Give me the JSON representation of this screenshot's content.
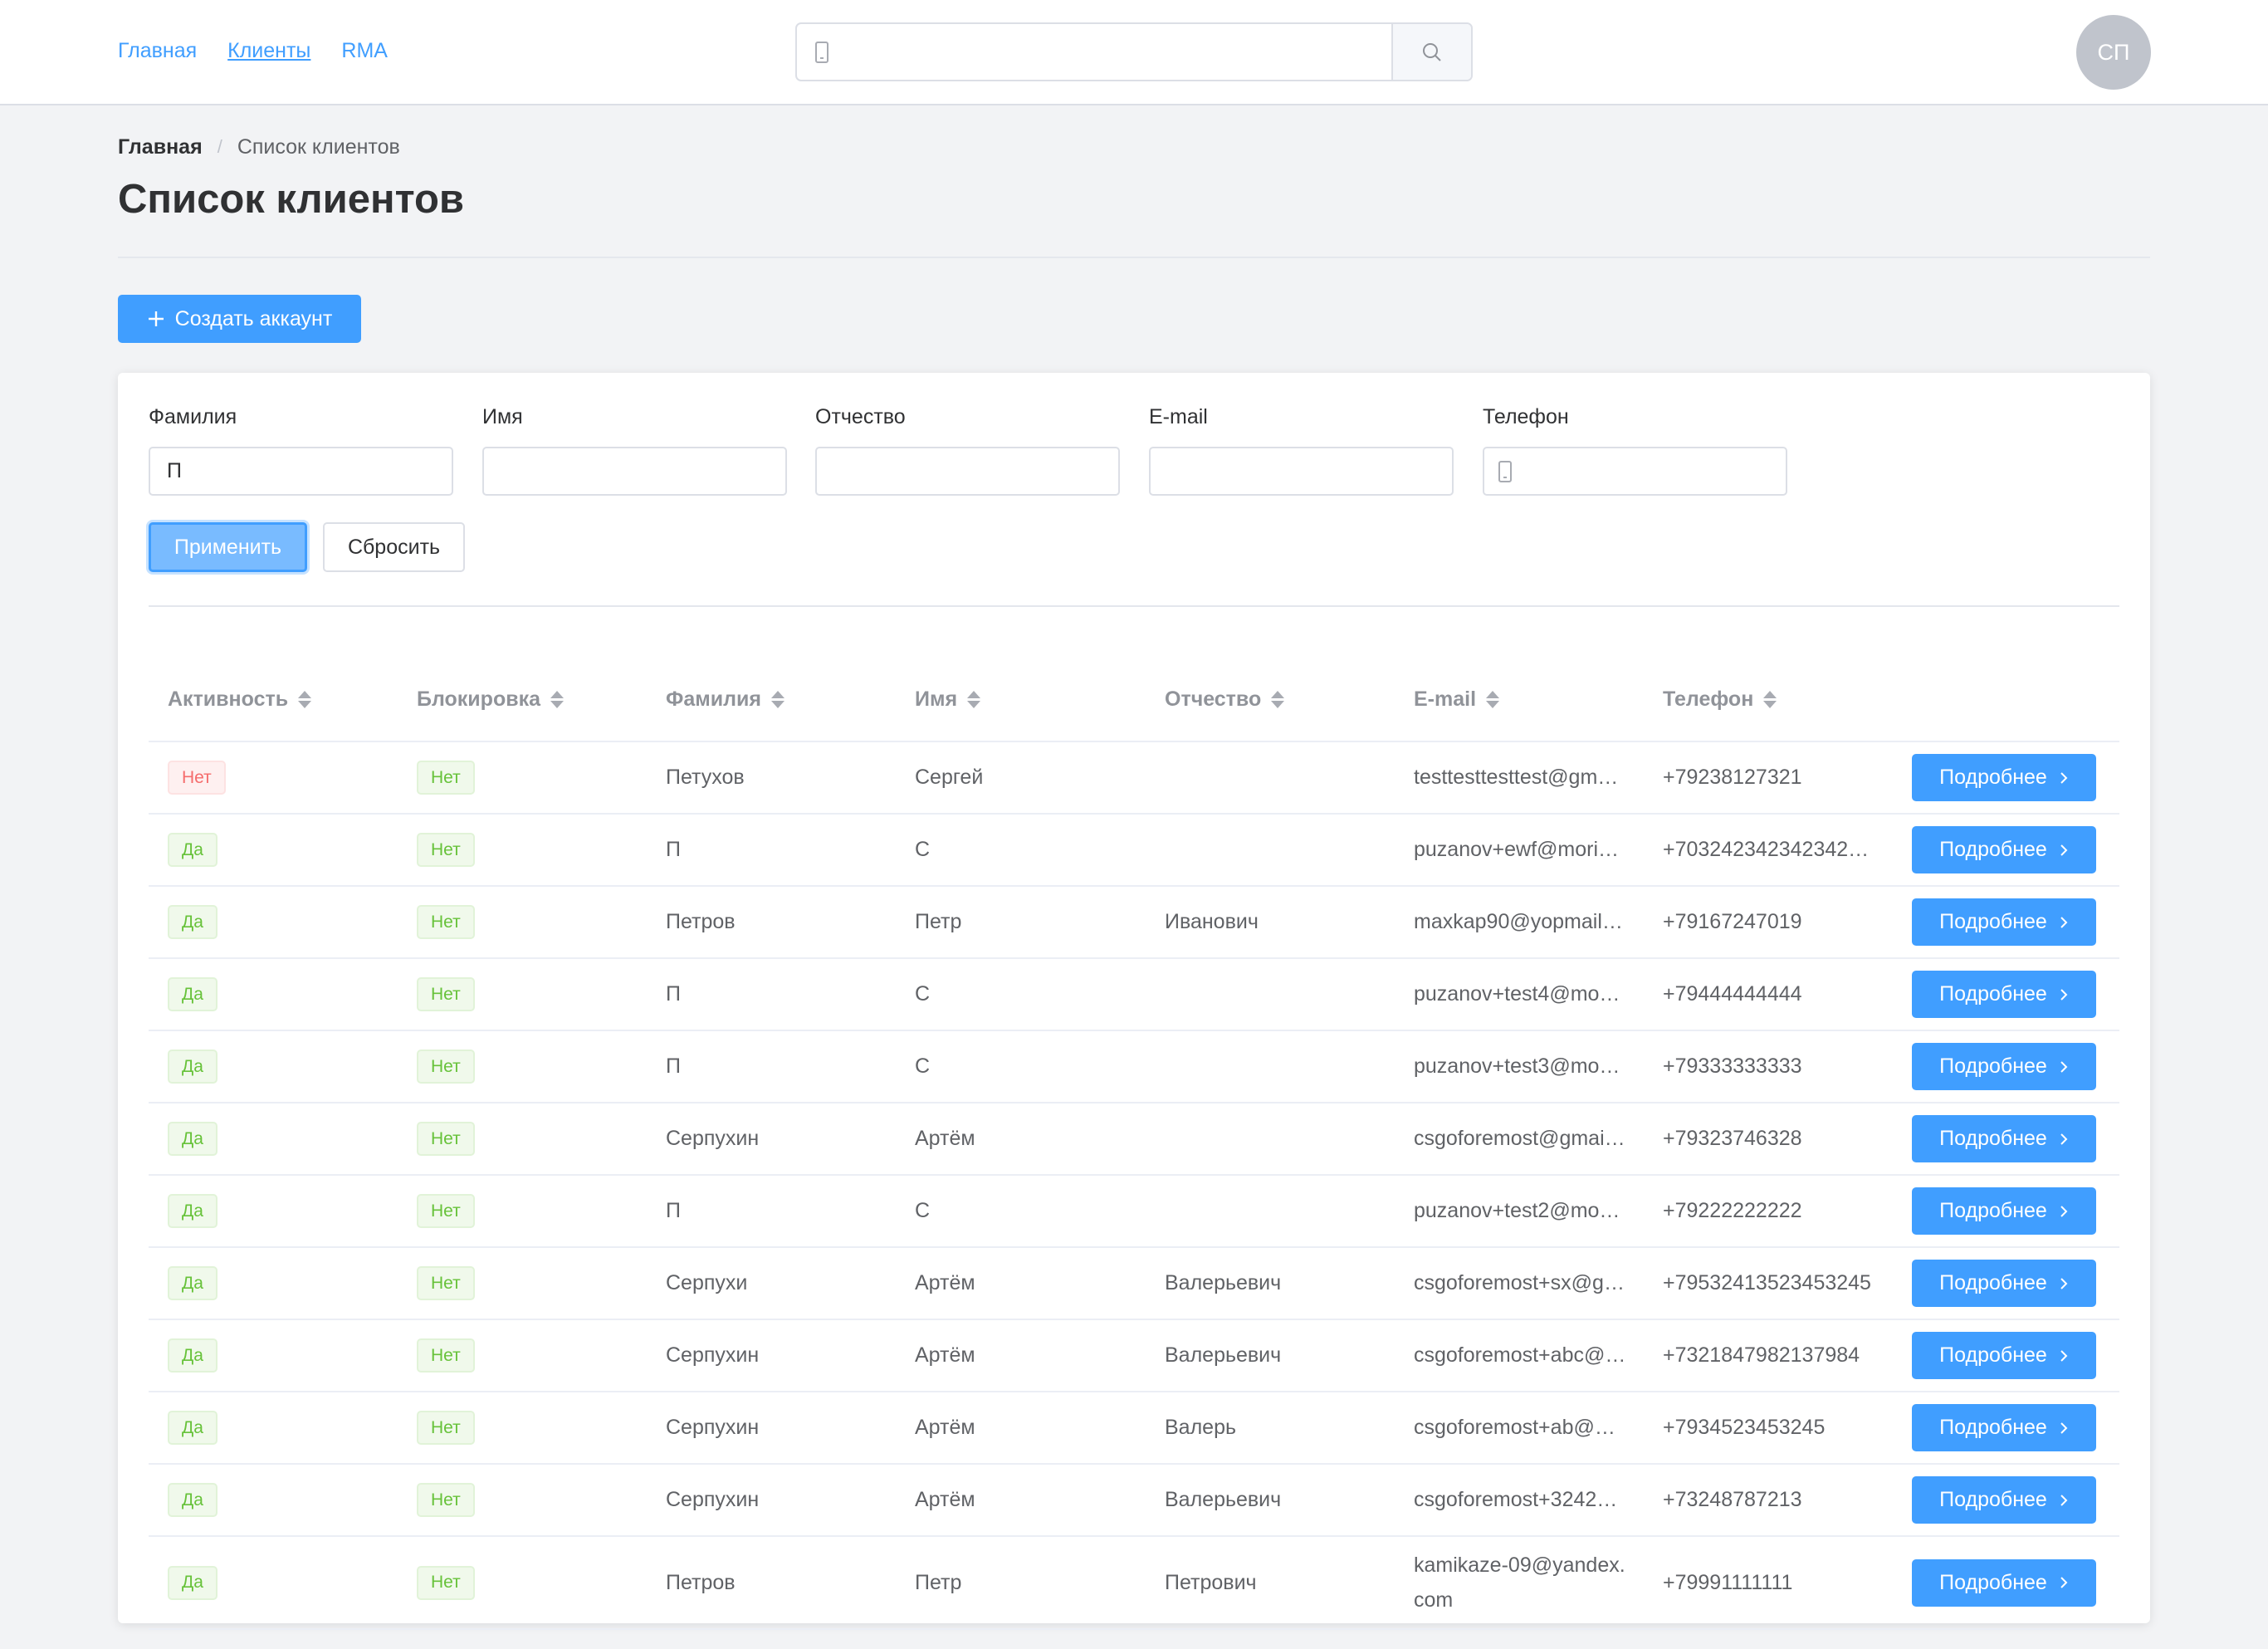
{
  "nav": {
    "items": [
      {
        "label": "Главная",
        "active": false
      },
      {
        "label": "Клиенты",
        "active": true
      },
      {
        "label": "RMA",
        "active": false
      }
    ]
  },
  "header_search": {
    "value": "",
    "placeholder": "",
    "prefix_icon": "phone-icon",
    "button_icon": "search-icon"
  },
  "user": {
    "initials": "СП"
  },
  "breadcrumb": {
    "home": "Главная",
    "separator": "/",
    "current": "Список клиентов"
  },
  "page": {
    "title": "Список клиентов",
    "create_button": "Создать аккаунт"
  },
  "filters": {
    "last_name": {
      "label": "Фамилия",
      "value": "П"
    },
    "first_name": {
      "label": "Имя",
      "value": ""
    },
    "middle_name": {
      "label": "Отчество",
      "value": ""
    },
    "email": {
      "label": "E-mail",
      "value": ""
    },
    "phone": {
      "label": "Телефон",
      "value": "",
      "prefix_icon": "phone-icon"
    },
    "apply_label": "Применить",
    "reset_label": "Сбросить"
  },
  "table": {
    "columns": [
      "Активность",
      "Блокировка",
      "Фамилия",
      "Имя",
      "Отчество",
      "E-mail",
      "Телефон"
    ],
    "details_label": "Подробнее",
    "rows": [
      {
        "active": "Нет",
        "blocked": "Нет",
        "last_name": "Петухов",
        "first_name": "Сергей",
        "middle_name": "",
        "email": "testtesttesttest@gm…",
        "phone": "+79238127321"
      },
      {
        "active": "Да",
        "blocked": "Нет",
        "last_name": "П",
        "first_name": "С",
        "middle_name": "",
        "email": "puzanov+ewf@mori…",
        "phone": "+703242342342342…"
      },
      {
        "active": "Да",
        "blocked": "Нет",
        "last_name": "Петров",
        "first_name": "Петр",
        "middle_name": "Иванович",
        "email": "maxkap90@yopmail…",
        "phone": "+79167247019"
      },
      {
        "active": "Да",
        "blocked": "Нет",
        "last_name": "П",
        "first_name": "С",
        "middle_name": "",
        "email": "puzanov+test4@mo…",
        "phone": "+79444444444"
      },
      {
        "active": "Да",
        "blocked": "Нет",
        "last_name": "П",
        "first_name": "С",
        "middle_name": "",
        "email": "puzanov+test3@mo…",
        "phone": "+79333333333"
      },
      {
        "active": "Да",
        "blocked": "Нет",
        "last_name": "Серпухин",
        "first_name": "Артём",
        "middle_name": "",
        "email": "csgoforemost@gmai…",
        "phone": "+79323746328"
      },
      {
        "active": "Да",
        "blocked": "Нет",
        "last_name": "П",
        "first_name": "С",
        "middle_name": "",
        "email": "puzanov+test2@mo…",
        "phone": "+79222222222"
      },
      {
        "active": "Да",
        "blocked": "Нет",
        "last_name": "Серпухи",
        "first_name": "Артём",
        "middle_name": "Валерьевич",
        "email": "csgoforemost+sx@g…",
        "phone": "+79532413523453245"
      },
      {
        "active": "Да",
        "blocked": "Нет",
        "last_name": "Серпухин",
        "first_name": "Артём",
        "middle_name": "Валерьевич",
        "email": "csgoforemost+abc@…",
        "phone": "+7321847982137984"
      },
      {
        "active": "Да",
        "blocked": "Нет",
        "last_name": "Серпухин",
        "first_name": "Артём",
        "middle_name": "Валерь",
        "email": "csgoforemost+ab@…",
        "phone": "+7934523453245"
      },
      {
        "active": "Да",
        "blocked": "Нет",
        "last_name": "Серпухин",
        "first_name": "Артём",
        "middle_name": "Валерьевич",
        "email": "csgoforemost+3242…",
        "phone": "+73248787213"
      },
      {
        "active": "Да",
        "blocked": "Нет",
        "last_name": "Петров",
        "first_name": "Петр",
        "middle_name": "Петрович",
        "email": "kamikaze-09@yandex.com",
        "phone": "+79991111111"
      }
    ]
  },
  "colors": {
    "primary": "#409eff",
    "danger": "#f56c6c",
    "success": "#67c23a",
    "background": "#f2f3f5"
  }
}
